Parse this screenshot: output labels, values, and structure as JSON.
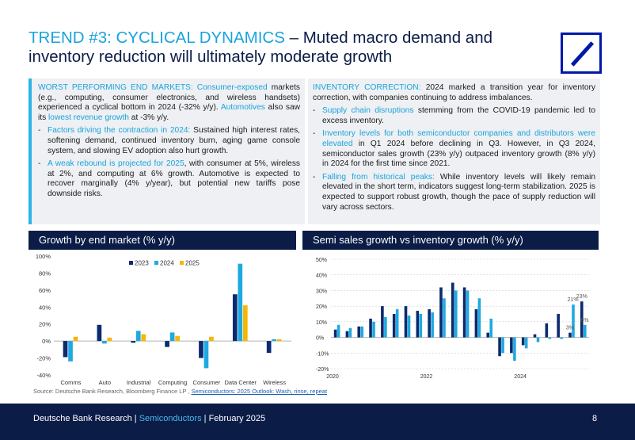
{
  "title": {
    "accent": "TREND #3: CYCLICAL DYNAMICS",
    "rest": " – Muted macro demand and inventory reduction will ultimately moderate growth"
  },
  "colors": {
    "navy": "#0b1c47",
    "accent": "#1aa3dc",
    "c2023": "#0b2a6f",
    "c2024": "#1fa9e1",
    "c2025": "#f5b700"
  },
  "left_panel": {
    "p1": [
      "WORST PERFORMING END MARKETS: Consumer-exposed",
      " markets (e.g., computing, consumer electronics, and wireless handsets) experienced a cyclical bottom in 2024 (-32% y/y). ",
      "Automotives",
      " also saw its ",
      "lowest revenue growth",
      " at -3% y/y."
    ],
    "b1": [
      "Factors driving the contraction in 2024:",
      " Sustained high interest rates, softening demand, continued inventory burn, aging game console system, and slowing EV adoption also hurt growth."
    ],
    "b2": [
      "A weak rebound is projected for 2025",
      ", with consumer at 5%, wireless at 2%, and computing at 6% growth. Automotive is expected to recover marginally (4% y/year), but potential new tariffs pose downside risks."
    ]
  },
  "right_panel": {
    "p1": [
      "INVENTORY CORRECTION:",
      " 2024 marked a transition year for inventory correction, with companies continuing to address imbalances."
    ],
    "b1": [
      "Supply chain disruptions",
      " stemming from the COVID-19 pandemic led to excess inventory."
    ],
    "b2": [
      "Inventory levels for both semiconductor companies and distributors were elevated",
      " in Q1 2024 before declining in Q3. However, in Q3 2024, semiconductor sales growth (23% y/y) outpaced inventory growth (8% y/y) in 2024 for the first time since 2021."
    ],
    "b3": [
      "Falling from historical peaks:",
      " While inventory levels will likely remain elevated in the short term, indicators suggest long-term stabilization. 2025 is expected to support robust growth, though the pace of supply reduction will vary across sectors."
    ]
  },
  "chart_headers": {
    "left": "Growth by end market (% y/y)",
    "right": "Semi sales growth vs inventory growth (% y/y)"
  },
  "chart_data": [
    {
      "type": "bar",
      "title": "Growth by end market (% y/y)",
      "categories": [
        "Comms",
        "Auto",
        "Industrial",
        "Computing",
        "Consumer",
        "Data Center",
        "Wireless"
      ],
      "series": [
        {
          "name": "2023",
          "values": [
            -19,
            19,
            -2,
            -7,
            -20,
            55,
            -14
          ]
        },
        {
          "name": "2024",
          "values": [
            -24,
            -3,
            12,
            10,
            -32,
            91,
            2
          ]
        },
        {
          "name": "2025",
          "values": [
            5,
            4,
            8,
            6,
            5,
            42,
            2
          ]
        }
      ],
      "ylim": [
        -40,
        100
      ],
      "yticks": [
        "-40%",
        "-20%",
        "0%",
        "20%",
        "40%",
        "60%",
        "80%",
        "100%"
      ]
    },
    {
      "type": "bar",
      "title": "Semi sales growth vs inventory growth (% y/y)",
      "series": [
        {
          "name": "Semi sales growth",
          "values": [
            5,
            4,
            7,
            12,
            20,
            15,
            20,
            17,
            18,
            32,
            35,
            32,
            18,
            3,
            -12,
            -10,
            -5,
            2,
            9,
            15,
            3,
            23
          ]
        },
        {
          "name": "Inventory growth",
          "values": [
            8,
            6,
            7,
            10,
            13,
            18,
            14,
            15,
            16,
            25,
            30,
            30,
            25,
            12,
            -10,
            -15,
            -7,
            -3,
            -1,
            -1,
            21,
            8
          ]
        }
      ],
      "ylim": [
        -20,
        50
      ],
      "yticks": [
        "-20%",
        "-10%",
        "0%",
        "10%",
        "20%",
        "30%",
        "40%",
        "50%"
      ],
      "xlabels": [
        {
          "label": "2020",
          "index": 0
        },
        {
          "label": "2022",
          "index": 8
        },
        {
          "label": "2024",
          "index": 16
        }
      ],
      "annotations": [
        {
          "text": "21%",
          "series": 1,
          "index": 20
        },
        {
          "text": "23%",
          "series": 0,
          "index": 21
        },
        {
          "text": "3%",
          "series": 0,
          "index": 20
        },
        {
          "text": "8%",
          "series": 1,
          "index": 21
        }
      ]
    }
  ],
  "source": {
    "text": "Source: Deutsche Bank Research, Bloomberg Finance LP , ",
    "link": "Semiconductors: 2025 Outlook: Wash, rinse, repeat"
  },
  "footer": {
    "org": "Deutsche Bank Research",
    "sep1": " | ",
    "topic": "Semiconductors",
    "sep2": " | ",
    "date": "February 2025",
    "page": "8"
  }
}
